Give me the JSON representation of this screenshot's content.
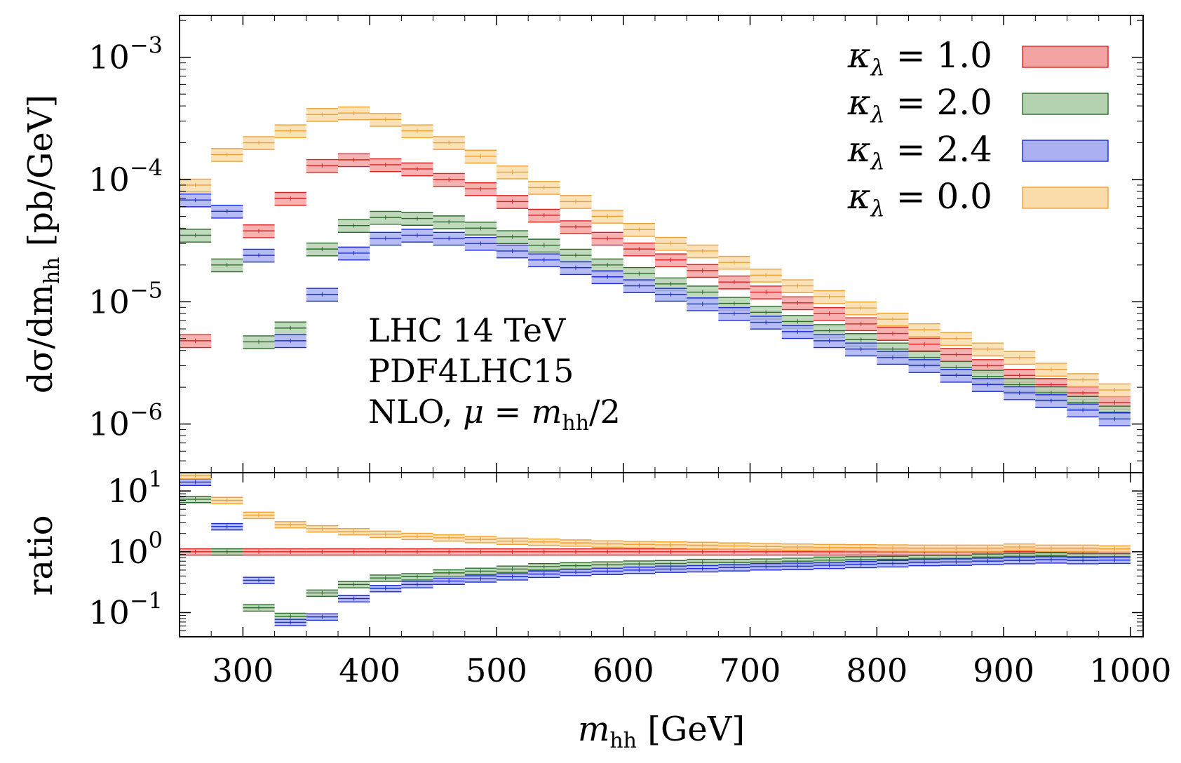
{
  "chart_data": {
    "type": "histogram-band",
    "title": "",
    "xlabel": {
      "main": "m",
      "sub": "hh",
      "unit": " [GeV]"
    },
    "x_range": [
      250,
      1010
    ],
    "x_ticks": [
      300,
      400,
      500,
      600,
      700,
      800,
      900,
      1000
    ],
    "bin_edges": [
      250,
      275,
      300,
      325,
      350,
      375,
      400,
      425,
      450,
      475,
      500,
      525,
      550,
      575,
      600,
      625,
      650,
      675,
      700,
      725,
      750,
      775,
      800,
      825,
      850,
      875,
      900,
      925,
      950,
      975,
      1000
    ],
    "upper_panel": {
      "ylabel": {
        "prefix": "dσ/dm",
        "sub": "hh",
        "unit": " [pb/GeV]"
      },
      "yscale": "log",
      "ylim": [
        4e-07,
        0.0022
      ],
      "y_ticks": [
        {
          "value": 1e-06,
          "mant": "10",
          "exp": "−6"
        },
        {
          "value": 1e-05,
          "mant": "10",
          "exp": "−5"
        },
        {
          "value": 0.0001,
          "mant": "10",
          "exp": "−4"
        },
        {
          "value": 0.001,
          "mant": "10",
          "exp": "−3"
        }
      ]
    },
    "lower_panel": {
      "ylabel": "ratio",
      "yscale": "log",
      "ylim": [
        0.04,
        20
      ],
      "y_ticks": [
        {
          "value": 0.1,
          "mant": "10",
          "exp": "−1"
        },
        {
          "value": 1,
          "mant": "10",
          "exp": "0"
        },
        {
          "value": 10,
          "mant": "10",
          "exp": "1"
        }
      ]
    },
    "annotation": [
      "LHC 14 TeV",
      "PDF4LHC15",
      "NLO, μ = m_hh/2"
    ],
    "legend_position": "top-right",
    "relative_band_width": 0.12,
    "series": [
      {
        "name": "κ_λ = 1.0",
        "label_prefix": "κ",
        "label_sub": "λ",
        "label_value": " = 1.0",
        "fill": "#f4a3a3",
        "stroke": "#e02020",
        "values": [
          4.8e-06,
          null,
          3.8e-05,
          7e-05,
          0.00013,
          0.000145,
          0.000132,
          0.000122,
          0.0001,
          8.4e-05,
          6.6e-05,
          5.1e-05,
          4.1e-05,
          3.3e-05,
          2.7e-05,
          2.2e-05,
          1.8e-05,
          1.45e-05,
          1.2e-05,
          9.8e-06,
          8e-06,
          6.6e-06,
          5.5e-06,
          4.5e-06,
          3.7e-06,
          3e-06,
          2.5e-06,
          2.1e-06,
          1.8e-06,
          1.5e-06
        ],
        "ratio": [
          1,
          1,
          1,
          1,
          1,
          1,
          1,
          1,
          1,
          1,
          1,
          1,
          1,
          1,
          1,
          1,
          1,
          1,
          1,
          1,
          1,
          1,
          1,
          1,
          1,
          1,
          1,
          1,
          1,
          1
        ]
      },
      {
        "name": "κ_λ = 2.0",
        "label_prefix": "κ",
        "label_sub": "λ",
        "label_value": " = 2.0",
        "fill": "#b5d2b0",
        "stroke": "#2a6a2a",
        "values": [
          3.5e-05,
          2e-05,
          4.7e-06,
          6.1e-06,
          2.7e-05,
          4.2e-05,
          4.9e-05,
          4.8e-05,
          4.5e-05,
          4e-05,
          3.4e-05,
          2.9e-05,
          2.4e-05,
          2e-05,
          1.7e-05,
          1.4e-05,
          1.2e-05,
          9.7e-06,
          8.2e-06,
          6.9e-06,
          5.8e-06,
          4.9e-06,
          4.1e-06,
          3.5e-06,
          2.9e-06,
          2.45e-06,
          2.1e-06,
          1.8e-06,
          1.5e-06,
          1.25e-06
        ],
        "ratio": [
          7.3,
          1.0,
          0.12,
          0.087,
          0.21,
          0.29,
          0.37,
          0.39,
          0.45,
          0.48,
          0.52,
          0.57,
          0.59,
          0.61,
          0.63,
          0.64,
          0.67,
          0.67,
          0.68,
          0.7,
          0.73,
          0.74,
          0.75,
          0.78,
          0.78,
          0.82,
          0.84,
          0.86,
          0.83,
          0.83
        ]
      },
      {
        "name": "κ_λ = 2.4",
        "label_prefix": "κ",
        "label_sub": "λ",
        "label_value": " = 2.4",
        "fill": "#aab0f2",
        "stroke": "#1a2ad8",
        "values": [
          6.8e-05,
          5.5e-05,
          2.4e-05,
          4.8e-06,
          1.15e-05,
          2.5e-05,
          3.3e-05,
          3.5e-05,
          3.3e-05,
          3e-05,
          2.6e-05,
          2.2e-05,
          1.9e-05,
          1.6e-05,
          1.35e-05,
          1.15e-05,
          9.6e-06,
          8e-06,
          6.8e-06,
          5.7e-06,
          4.8e-06,
          4.1e-06,
          3.5e-06,
          3e-06,
          2.5e-06,
          2.1e-06,
          1.8e-06,
          1.55e-06,
          1.3e-06,
          1.1e-06
        ],
        "ratio": [
          14,
          2.6,
          0.34,
          0.069,
          0.085,
          0.17,
          0.25,
          0.29,
          0.33,
          0.36,
          0.39,
          0.43,
          0.46,
          0.48,
          0.5,
          0.52,
          0.53,
          0.55,
          0.57,
          0.58,
          0.6,
          0.62,
          0.64,
          0.67,
          0.68,
          0.7,
          0.72,
          0.74,
          0.72,
          0.73
        ]
      },
      {
        "name": "κ_λ = 0.0",
        "label_prefix": "κ",
        "label_sub": "λ",
        "label_value": " = 0.0",
        "fill": "#fadcaa",
        "stroke": "#f0a030",
        "values": [
          9e-05,
          0.00016,
          0.0002,
          0.00025,
          0.00034,
          0.00035,
          0.00031,
          0.00025,
          0.0002,
          0.000155,
          0.000115,
          8.6e-05,
          6.6e-05,
          5e-05,
          3.9e-05,
          3e-05,
          2.6e-05,
          2.1e-05,
          1.65e-05,
          1.35e-05,
          1.1e-05,
          8.9e-06,
          7.2e-06,
          5.9e-06,
          5e-06,
          4.1e-06,
          3.5e-06,
          2.8e-06,
          2.3e-06,
          1.9e-06
        ],
        "ratio": [
          18,
          7.0,
          4.0,
          2.8,
          2.4,
          2.15,
          1.95,
          1.8,
          1.7,
          1.6,
          1.5,
          1.45,
          1.4,
          1.35,
          1.32,
          1.3,
          1.28,
          1.25,
          1.22,
          1.2,
          1.18,
          1.17,
          1.16,
          1.15,
          1.15,
          1.15,
          1.2,
          1.15,
          1.15,
          1.12
        ]
      }
    ]
  }
}
